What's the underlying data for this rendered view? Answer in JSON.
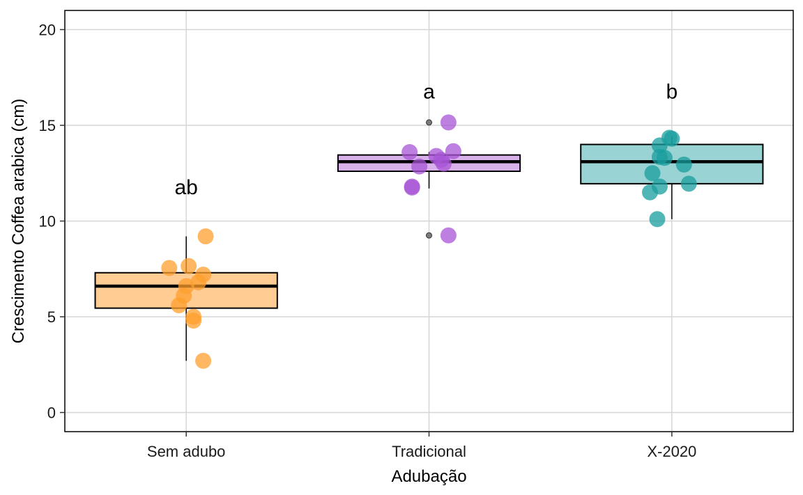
{
  "chart_data": {
    "type": "boxplot",
    "xlabel": "Adubação",
    "ylabel": "Crescimento Coffea arabica (cm)",
    "ylim": [
      -1,
      21
    ],
    "yticks": [
      0,
      5,
      10,
      15,
      20
    ],
    "grid": true,
    "categories": [
      "Sem adubo",
      "Tradicional",
      "X-2020"
    ],
    "groups": [
      {
        "name": "Sem adubo",
        "color": "#ff9f2e",
        "box_fill": "#ffcc94",
        "letter": "ab",
        "letter_y": 11.8,
        "box": {
          "min": 2.7,
          "q1": 5.45,
          "median": 6.6,
          "q3": 7.3,
          "max": 9.2
        },
        "outliers": [],
        "points": [
          {
            "x_offset": -0.07,
            "y": 7.55
          },
          {
            "x_offset": 0.01,
            "y": 7.65
          },
          {
            "x_offset": 0.08,
            "y": 9.2
          },
          {
            "x_offset": 0.07,
            "y": 7.2
          },
          {
            "x_offset": 0.05,
            "y": 6.8
          },
          {
            "x_offset": 0.0,
            "y": 6.6
          },
          {
            "x_offset": -0.01,
            "y": 6.1
          },
          {
            "x_offset": -0.03,
            "y": 5.6
          },
          {
            "x_offset": 0.03,
            "y": 5.0
          },
          {
            "x_offset": 0.03,
            "y": 4.8
          },
          {
            "x_offset": 0.07,
            "y": 2.7
          }
        ]
      },
      {
        "name": "Tradicional",
        "color": "#a855d6",
        "box_fill": "#d8b0ea",
        "letter": "a",
        "letter_y": 16.8,
        "box": {
          "min": 11.7,
          "q1": 12.6,
          "median": 13.1,
          "q3": 13.45,
          "max": 13.6
        },
        "outliers": [
          15.15,
          9.25
        ],
        "points": [
          {
            "x_offset": 0.08,
            "y": 15.15
          },
          {
            "x_offset": -0.08,
            "y": 13.6
          },
          {
            "x_offset": 0.1,
            "y": 13.65
          },
          {
            "x_offset": 0.03,
            "y": 13.4
          },
          {
            "x_offset": 0.05,
            "y": 13.2
          },
          {
            "x_offset": 0.06,
            "y": 13.0
          },
          {
            "x_offset": -0.04,
            "y": 12.85
          },
          {
            "x_offset": -0.07,
            "y": 11.8
          },
          {
            "x_offset": -0.07,
            "y": 11.75
          },
          {
            "x_offset": 0.08,
            "y": 9.25
          }
        ]
      },
      {
        "name": "X-2020",
        "color": "#1a9e9e",
        "box_fill": "#9ad3d3",
        "letter": "b",
        "letter_y": 16.8,
        "box": {
          "min": 10.1,
          "q1": 11.95,
          "median": 13.1,
          "q3": 14.0,
          "max": 14.4
        },
        "outliers": [],
        "points": [
          {
            "x_offset": -0.01,
            "y": 14.35
          },
          {
            "x_offset": 0.0,
            "y": 14.3
          },
          {
            "x_offset": -0.05,
            "y": 13.95
          },
          {
            "x_offset": -0.05,
            "y": 13.35
          },
          {
            "x_offset": -0.03,
            "y": 13.3
          },
          {
            "x_offset": 0.05,
            "y": 12.95
          },
          {
            "x_offset": -0.08,
            "y": 12.5
          },
          {
            "x_offset": 0.07,
            "y": 11.95
          },
          {
            "x_offset": -0.05,
            "y": 11.8
          },
          {
            "x_offset": -0.09,
            "y": 11.5
          },
          {
            "x_offset": -0.06,
            "y": 10.1
          }
        ]
      }
    ]
  }
}
